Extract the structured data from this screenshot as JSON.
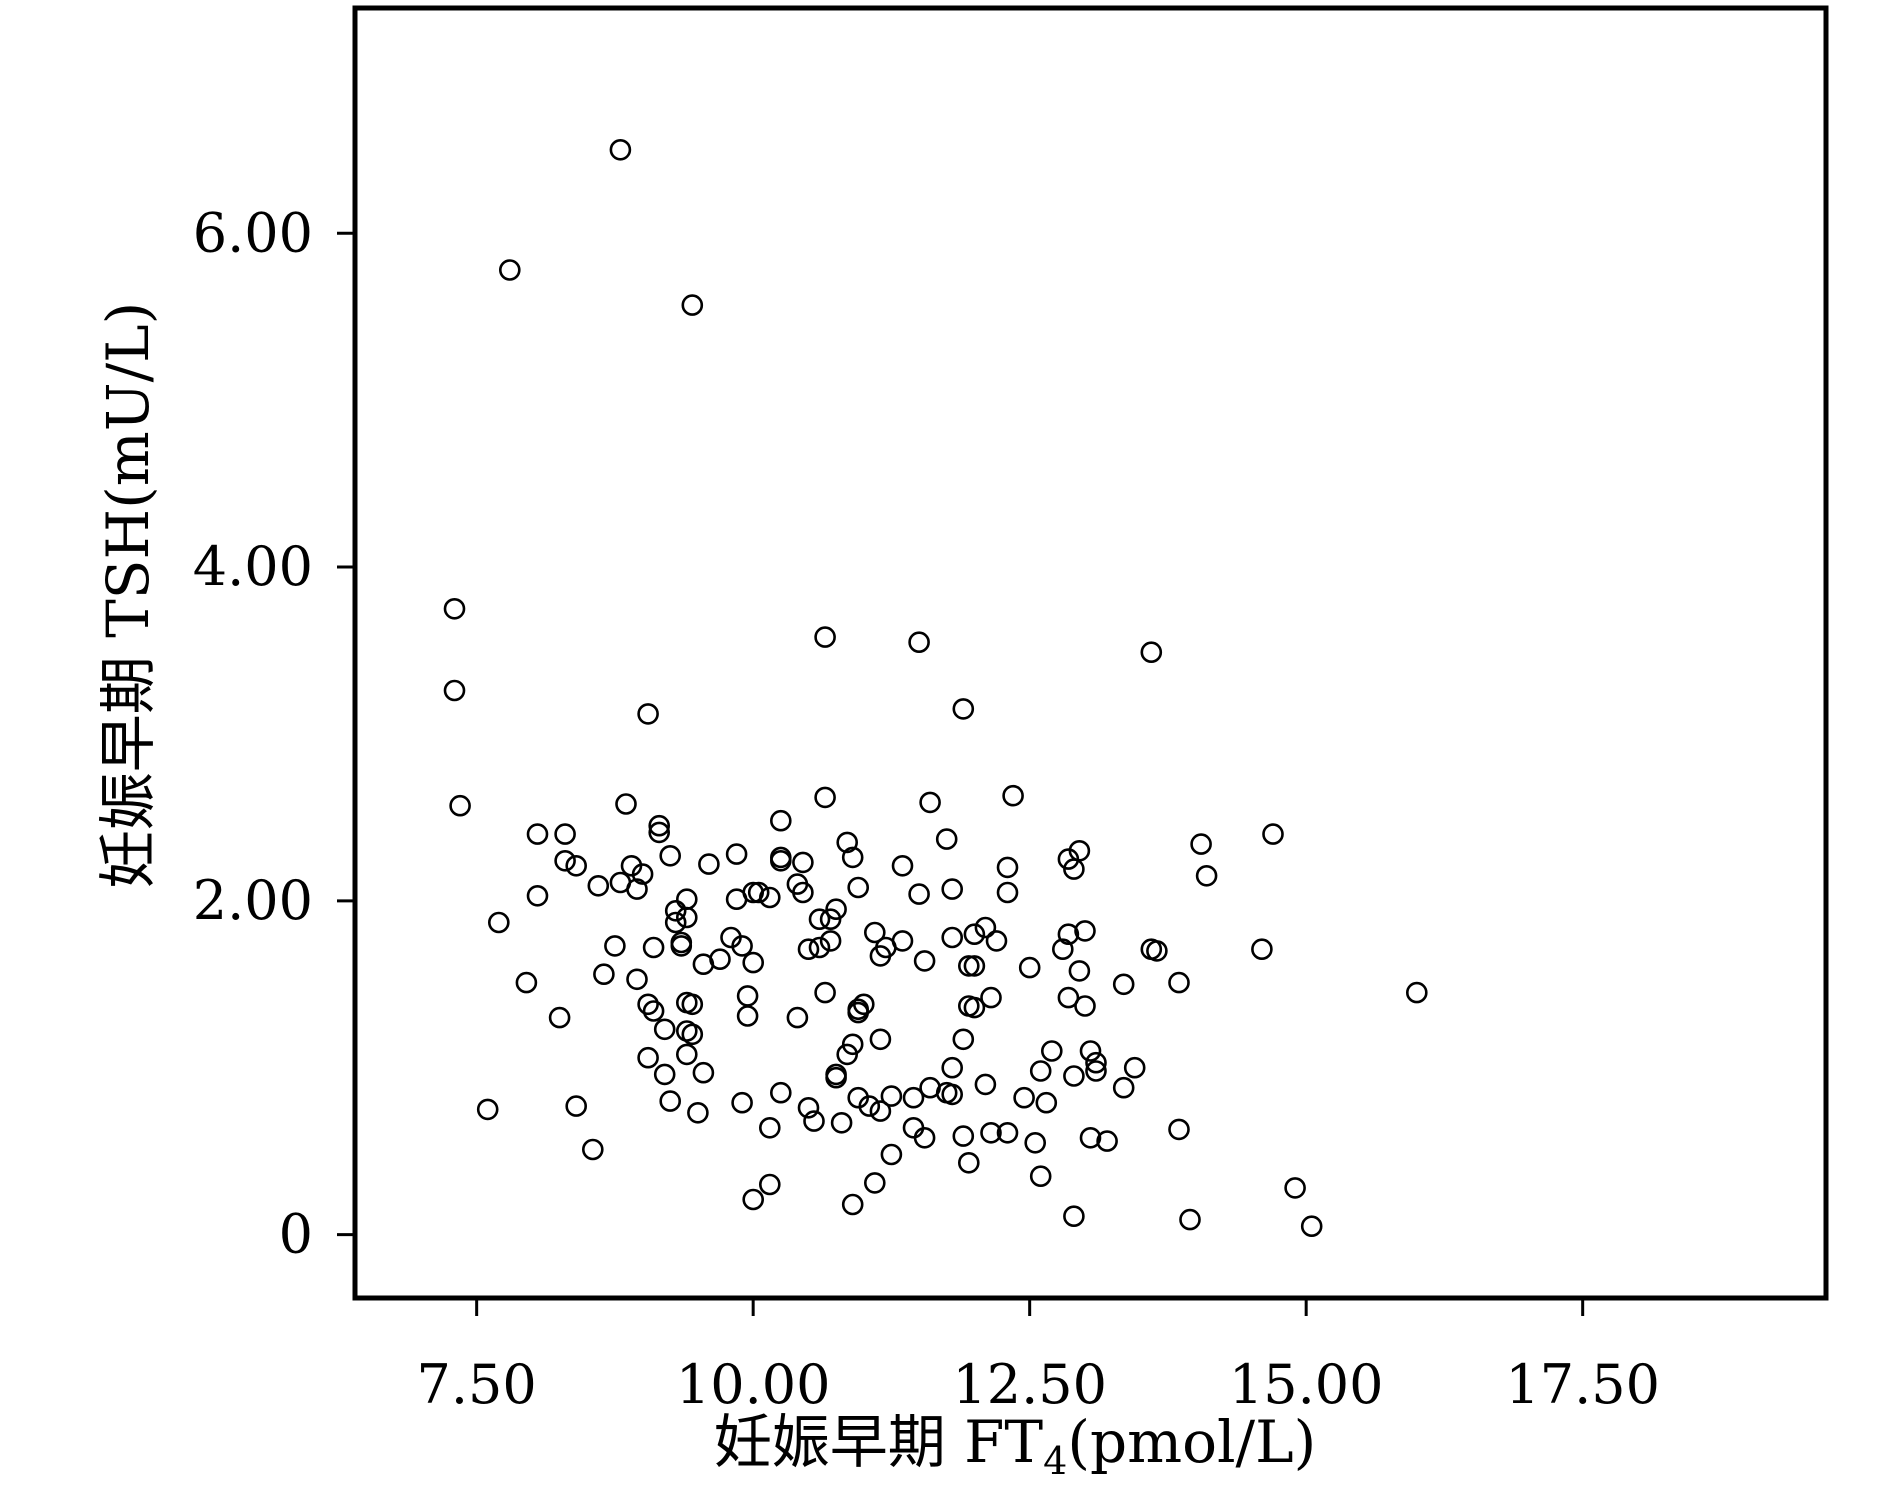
{
  "chart_data": {
    "type": "scatter",
    "title": "",
    "xlabel": "妊娠早期 FT",
    "xlabel_subscript": "4",
    "xlabel_suffix": "(pmol/L)",
    "ylabel": "妊娠早期 TSH(mU/L)",
    "xlim": [
      6.4,
      19.7
    ],
    "ylim": [
      -0.38,
      7.35
    ],
    "xticks": [
      7.5,
      10,
      12.5,
      15,
      17.5
    ],
    "xtick_labels": [
      "7.50",
      "10.00",
      "12.50",
      "15.00",
      "17.50"
    ],
    "yticks": [
      0,
      2,
      4,
      6
    ],
    "ytick_labels": [
      "0",
      "2.00",
      "4.00",
      "6.00"
    ],
    "grid": false,
    "legend": "none",
    "marker": "open-circle",
    "color": "#000000",
    "points": [
      [
        8.8,
        6.5
      ],
      [
        7.8,
        5.78
      ],
      [
        9.45,
        5.57
      ],
      [
        7.3,
        3.75
      ],
      [
        7.3,
        3.26
      ],
      [
        7.35,
        2.57
      ],
      [
        9.05,
        3.12
      ],
      [
        10.65,
        3.58
      ],
      [
        11.5,
        3.55
      ],
      [
        13.6,
        3.49
      ],
      [
        11.9,
        3.15
      ],
      [
        8.85,
        2.58
      ],
      [
        10.65,
        2.62
      ],
      [
        11.6,
        2.59
      ],
      [
        12.35,
        2.63
      ],
      [
        9.15,
        2.45
      ],
      [
        9.15,
        2.41
      ],
      [
        10.25,
        2.48
      ],
      [
        8.05,
        2.4
      ],
      [
        8.3,
        2.4
      ],
      [
        14.7,
        2.4
      ],
      [
        10.85,
        2.35
      ],
      [
        11.75,
        2.37
      ],
      [
        14.05,
        2.34
      ],
      [
        12.95,
        2.3
      ],
      [
        9.25,
        2.27
      ],
      [
        9.85,
        2.28
      ],
      [
        10.25,
        2.26
      ],
      [
        10.25,
        2.24
      ],
      [
        10.45,
        2.23
      ],
      [
        10.9,
        2.26
      ],
      [
        12.85,
        2.25
      ],
      [
        8.3,
        2.24
      ],
      [
        8.4,
        2.21
      ],
      [
        8.9,
        2.21
      ],
      [
        9.6,
        2.22
      ],
      [
        11.35,
        2.21
      ],
      [
        12.3,
        2.2
      ],
      [
        12.9,
        2.19
      ],
      [
        9.0,
        2.16
      ],
      [
        14.1,
        2.15
      ],
      [
        8.6,
        2.09
      ],
      [
        8.8,
        2.11
      ],
      [
        8.95,
        2.07
      ],
      [
        10.4,
        2.1
      ],
      [
        10.45,
        2.05
      ],
      [
        10.05,
        2.05
      ],
      [
        10.0,
        2.05
      ],
      [
        10.15,
        2.02
      ],
      [
        9.85,
        2.01
      ],
      [
        8.05,
        2.03
      ],
      [
        9.4,
        2.01
      ],
      [
        10.95,
        2.08
      ],
      [
        11.5,
        2.04
      ],
      [
        11.8,
        2.07
      ],
      [
        12.3,
        2.05
      ],
      [
        9.3,
        1.94
      ],
      [
        10.75,
        1.95
      ],
      [
        9.4,
        1.9
      ],
      [
        9.3,
        1.87
      ],
      [
        10.6,
        1.89
      ],
      [
        10.7,
        1.89
      ],
      [
        7.7,
        1.87
      ],
      [
        11.1,
        1.81
      ],
      [
        12.1,
        1.84
      ],
      [
        12.0,
        1.8
      ],
      [
        12.85,
        1.8
      ],
      [
        13.0,
        1.82
      ],
      [
        11.8,
        1.78
      ],
      [
        12.2,
        1.76
      ],
      [
        11.35,
        1.76
      ],
      [
        9.8,
        1.78
      ],
      [
        9.35,
        1.75
      ],
      [
        8.75,
        1.73
      ],
      [
        9.1,
        1.72
      ],
      [
        9.35,
        1.73
      ],
      [
        9.9,
        1.73
      ],
      [
        10.5,
        1.71
      ],
      [
        10.6,
        1.72
      ],
      [
        10.7,
        1.76
      ],
      [
        11.2,
        1.72
      ],
      [
        11.15,
        1.67
      ],
      [
        12.8,
        1.71
      ],
      [
        13.6,
        1.71
      ],
      [
        13.65,
        1.7
      ],
      [
        14.6,
        1.71
      ],
      [
        9.55,
        1.62
      ],
      [
        9.7,
        1.65
      ],
      [
        10.0,
        1.63
      ],
      [
        11.55,
        1.64
      ],
      [
        11.95,
        1.61
      ],
      [
        12.0,
        1.61
      ],
      [
        12.5,
        1.6
      ],
      [
        12.95,
        1.58
      ],
      [
        8.65,
        1.56
      ],
      [
        8.95,
        1.53
      ],
      [
        7.95,
        1.51
      ],
      [
        9.95,
        1.43
      ],
      [
        10.65,
        1.45
      ],
      [
        13.35,
        1.5
      ],
      [
        13.85,
        1.51
      ],
      [
        16.0,
        1.45
      ],
      [
        12.15,
        1.42
      ],
      [
        12.85,
        1.42
      ],
      [
        9.05,
        1.38
      ],
      [
        9.1,
        1.34
      ],
      [
        9.4,
        1.39
      ],
      [
        9.45,
        1.38
      ],
      [
        10.95,
        1.35
      ],
      [
        11.0,
        1.38
      ],
      [
        11.95,
        1.37
      ],
      [
        12.0,
        1.36
      ],
      [
        13.0,
        1.37
      ],
      [
        8.25,
        1.3
      ],
      [
        9.95,
        1.31
      ],
      [
        10.4,
        1.3
      ],
      [
        10.95,
        1.33
      ],
      [
        9.2,
        1.23
      ],
      [
        9.4,
        1.22
      ],
      [
        9.45,
        1.2
      ],
      [
        11.15,
        1.17
      ],
      [
        11.9,
        1.17
      ],
      [
        9.4,
        1.08
      ],
      [
        9.05,
        1.06
      ],
      [
        10.85,
        1.08
      ],
      [
        10.9,
        1.14
      ],
      [
        12.7,
        1.1
      ],
      [
        13.05,
        1.1
      ],
      [
        13.1,
        1.03
      ],
      [
        13.1,
        0.98
      ],
      [
        13.45,
        1.0
      ],
      [
        9.2,
        0.96
      ],
      [
        9.55,
        0.97
      ],
      [
        10.75,
        0.96
      ],
      [
        10.75,
        0.94
      ],
      [
        11.8,
        1.0
      ],
      [
        12.6,
        0.98
      ],
      [
        12.9,
        0.95
      ],
      [
        12.1,
        0.9
      ],
      [
        13.35,
        0.88
      ],
      [
        9.25,
        0.8
      ],
      [
        9.9,
        0.79
      ],
      [
        10.25,
        0.85
      ],
      [
        10.5,
        0.76
      ],
      [
        10.95,
        0.82
      ],
      [
        11.05,
        0.77
      ],
      [
        11.25,
        0.83
      ],
      [
        11.45,
        0.82
      ],
      [
        11.6,
        0.88
      ],
      [
        11.75,
        0.85
      ],
      [
        11.8,
        0.84
      ],
      [
        12.45,
        0.82
      ],
      [
        12.65,
        0.79
      ],
      [
        7.6,
        0.75
      ],
      [
        8.4,
        0.77
      ],
      [
        9.5,
        0.73
      ],
      [
        11.15,
        0.74
      ],
      [
        10.55,
        0.68
      ],
      [
        10.8,
        0.67
      ],
      [
        10.15,
        0.64
      ],
      [
        11.45,
        0.64
      ],
      [
        11.55,
        0.58
      ],
      [
        11.9,
        0.59
      ],
      [
        12.15,
        0.61
      ],
      [
        12.3,
        0.61
      ],
      [
        12.55,
        0.55
      ],
      [
        13.05,
        0.58
      ],
      [
        13.2,
        0.56
      ],
      [
        13.85,
        0.63
      ],
      [
        8.55,
        0.51
      ],
      [
        11.25,
        0.48
      ],
      [
        11.95,
        0.43
      ],
      [
        12.6,
        0.35
      ],
      [
        10.15,
        0.3
      ],
      [
        11.1,
        0.31
      ],
      [
        14.9,
        0.28
      ],
      [
        10.0,
        0.21
      ],
      [
        10.9,
        0.18
      ],
      [
        12.9,
        0.11
      ],
      [
        13.95,
        0.09
      ],
      [
        15.05,
        0.05
      ]
    ]
  }
}
